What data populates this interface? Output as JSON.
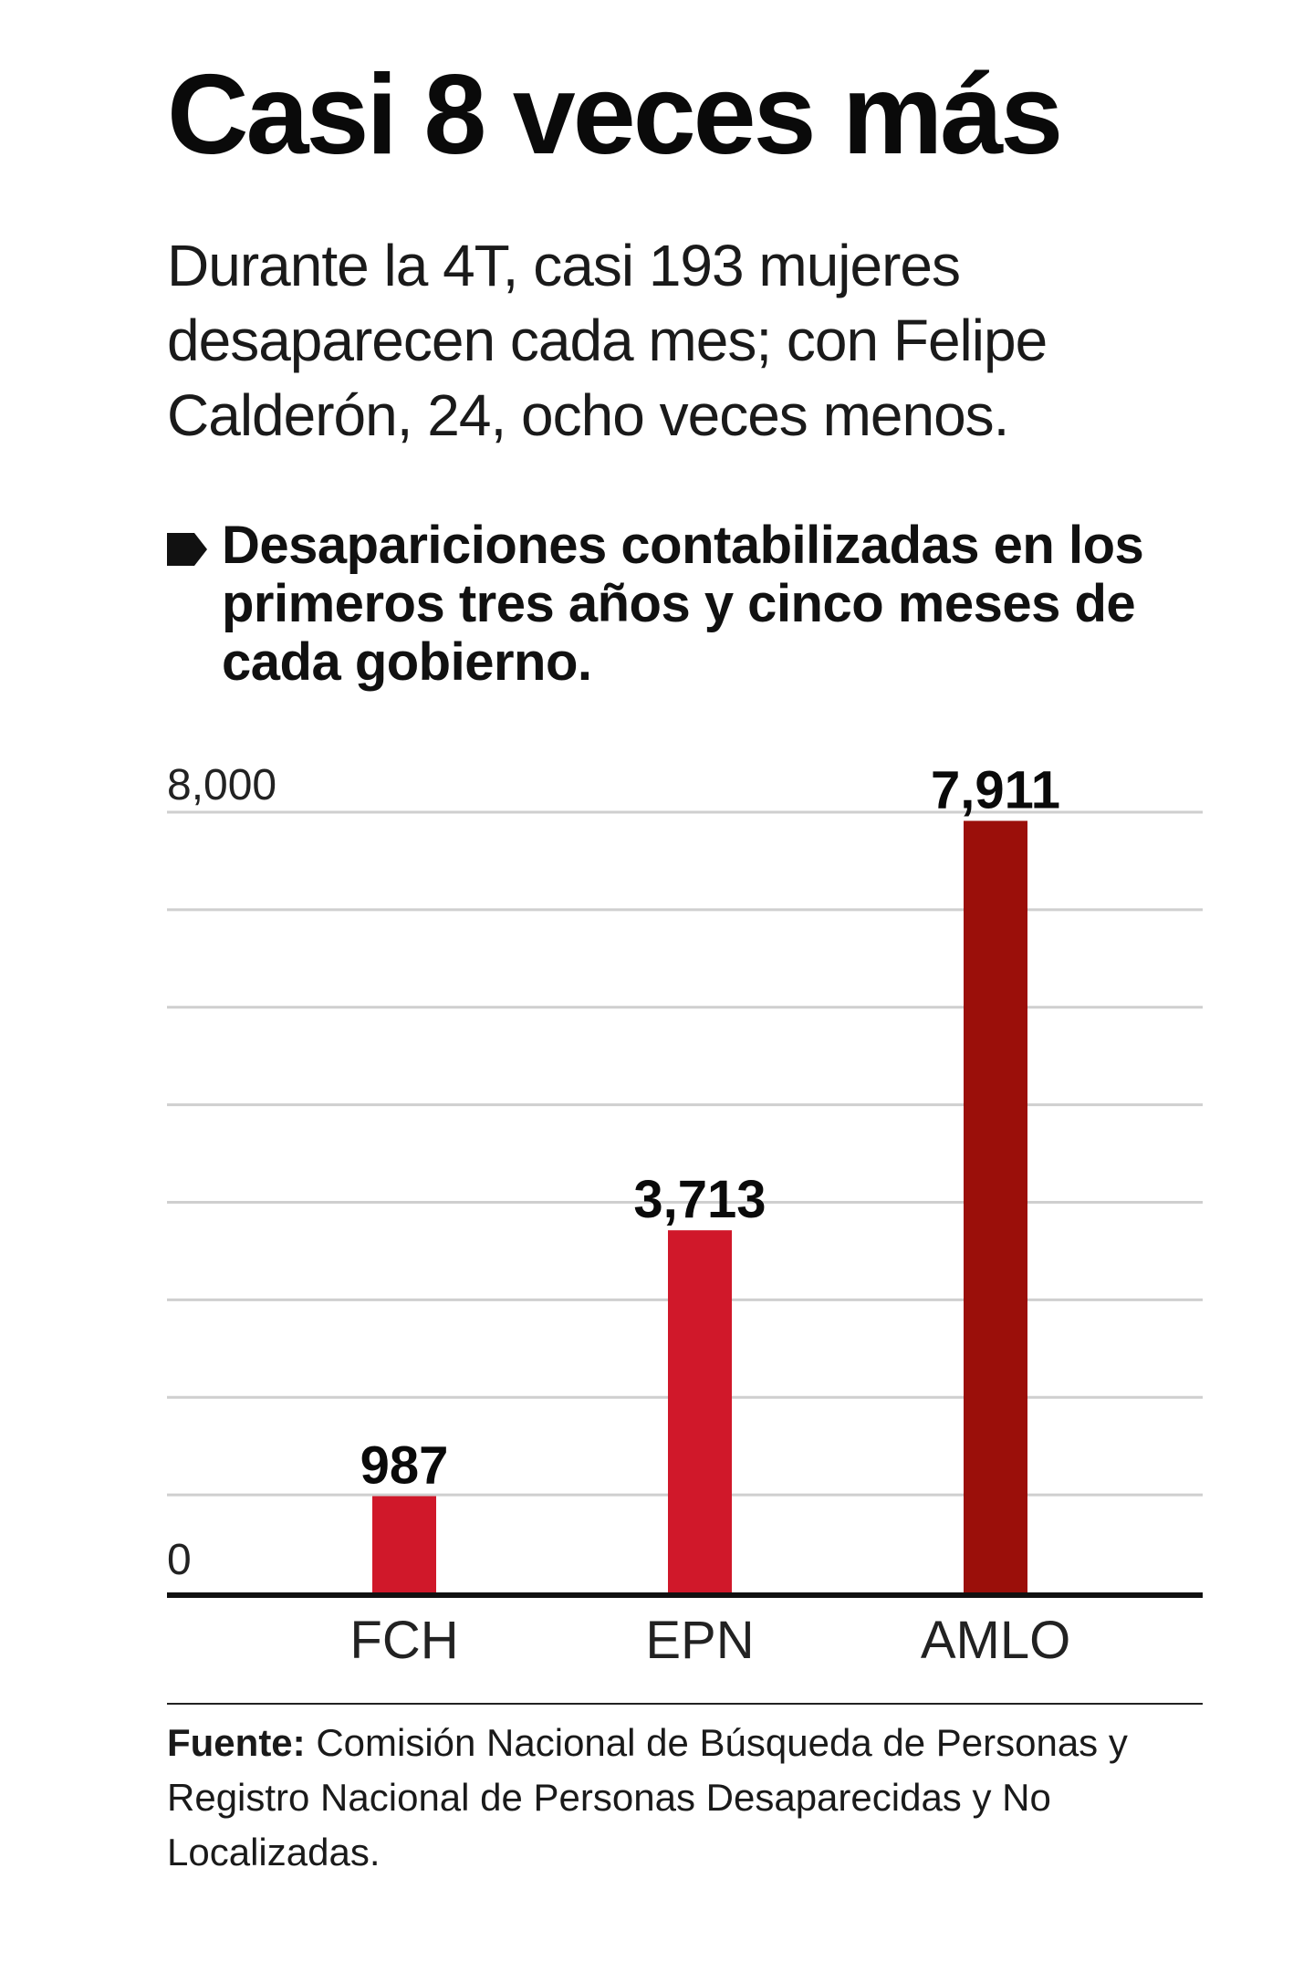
{
  "header": {
    "title": "Casi 8 veces más",
    "subtitle": "Durante la 4T, casi 193 mujeres desaparecen cada mes; con Felipe Calderón, 24, ocho veces menos."
  },
  "chart_heading": {
    "bullet_icon": "bullet-arrow-icon",
    "text": "Desapariciones contabilizadas en los primeros tres años y cinco meses de cada gobierno."
  },
  "chart_data": {
    "type": "bar",
    "title": "Desapariciones contabilizadas en los primeros tres años y cinco meses de cada gobierno.",
    "categories": [
      "FCH",
      "EPN",
      "AMLO"
    ],
    "values": [
      987,
      3713,
      7911
    ],
    "value_labels": [
      "987",
      "3,713",
      "7,911"
    ],
    "colors": [
      "#d0182a",
      "#d0182a",
      "#9b0f0a"
    ],
    "ylim": [
      0,
      8000
    ],
    "yticks": [
      0,
      1000,
      2000,
      3000,
      4000,
      5000,
      6000,
      7000,
      8000
    ],
    "ytick_labels_shown": {
      "0": "0",
      "8000": "8,000"
    },
    "xlabel": "",
    "ylabel": "",
    "grid": true
  },
  "source": {
    "label": "Fuente:",
    "text": " Comisión Nacional de Búsqueda de Personas y Registro Nacional de Personas Desaparecidas y No Localizadas."
  },
  "colors": {
    "bar_red": "#d0182a",
    "bar_dark_red": "#9b0f0a",
    "grid": "#cfcfcf",
    "axis": "#111111"
  }
}
